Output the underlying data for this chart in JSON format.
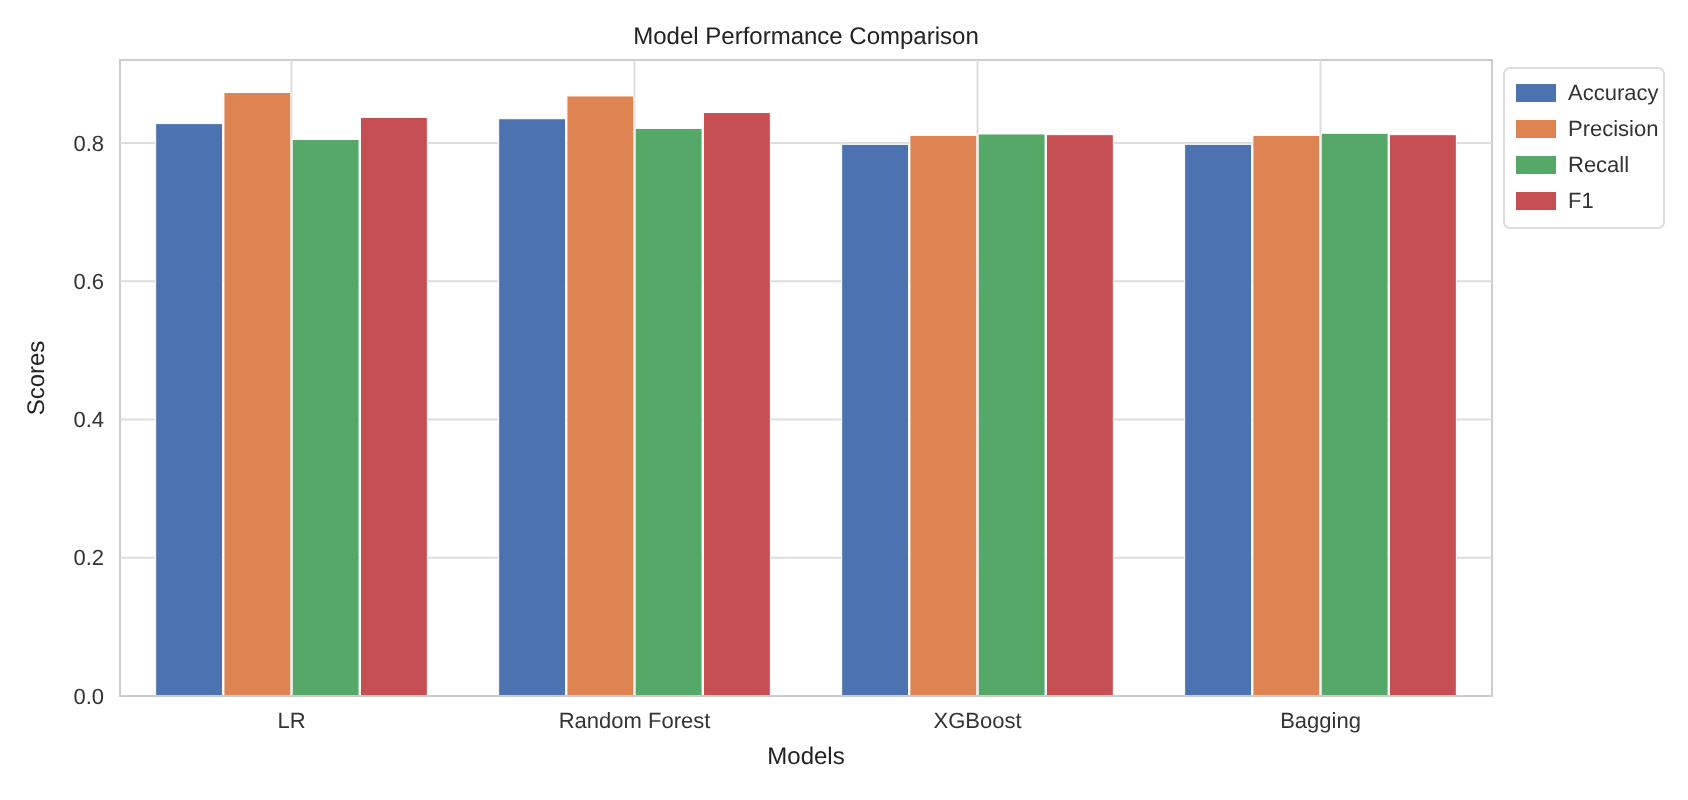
{
  "chart_data": {
    "type": "bar",
    "title": "Model Performance Comparison",
    "xlabel": "Models",
    "ylabel": "Scores",
    "categories": [
      "LR",
      "Random Forest",
      "XGBoost",
      "Bagging"
    ],
    "series": [
      {
        "name": "Accuracy",
        "color": "#4c72b0",
        "values": [
          0.828,
          0.835,
          0.798,
          0.798
        ]
      },
      {
        "name": "Precision",
        "color": "#dd8452",
        "values": [
          0.873,
          0.868,
          0.811,
          0.811
        ]
      },
      {
        "name": "Recall",
        "color": "#55a868",
        "values": [
          0.805,
          0.821,
          0.813,
          0.814
        ]
      },
      {
        "name": "F1",
        "color": "#c44e52",
        "values": [
          0.837,
          0.844,
          0.812,
          0.812
        ]
      }
    ],
    "ylim": [
      0,
      0.92
    ],
    "yticks": [
      {
        "value": 0,
        "label": "0.0"
      },
      {
        "value": 0.2,
        "label": "0.2"
      },
      {
        "value": 0.4,
        "label": "0.4"
      },
      {
        "value": 0.6,
        "label": "0.6"
      },
      {
        "value": 0.8,
        "label": "0.8"
      }
    ],
    "grid": true,
    "legend": "top right"
  }
}
